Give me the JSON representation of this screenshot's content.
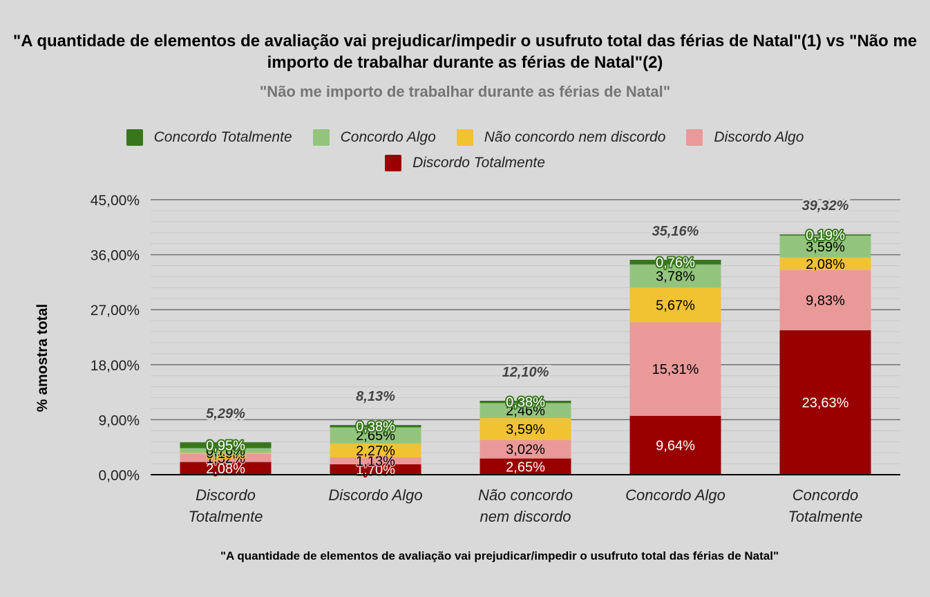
{
  "chart_data": {
    "type": "bar",
    "stacked": true,
    "title": "\"A quantidade de elementos de avaliação vai prejudicar/impedir o usufruto total das férias de Natal\"(1) vs \"Não me importo de trabalhar durante as férias de Natal\"(2)",
    "subtitle": "\"Não me importo de trabalhar durante as férias de Natal\"",
    "xlabel": "\"A quantidade de elementos de avaliação vai prejudicar/impedir o usufruto total das férias de Natal\"",
    "ylabel": "% amostra total",
    "ylim": [
      0,
      45
    ],
    "yticks": [
      0,
      9,
      18,
      27,
      36,
      45
    ],
    "ytick_labels": [
      "0,00%",
      "9,00%",
      "18,00%",
      "27,00%",
      "36,00%",
      "45,00%"
    ],
    "grid": true,
    "legend_position": "top",
    "categories": [
      "Discordo Totalmente",
      "Discordo Algo",
      "Não concordo nem discordo",
      "Concordo Algo",
      "Concordo Totalmente"
    ],
    "category_lines": [
      [
        "Discordo",
        "Totalmente"
      ],
      [
        "Discordo Algo"
      ],
      [
        "Não concordo",
        "nem discordo"
      ],
      [
        "Concordo Algo"
      ],
      [
        "Concordo",
        "Totalmente"
      ]
    ],
    "series": [
      {
        "name": "Discordo Totalmente",
        "color": "#990000",
        "label_color": "#ffffff",
        "values": [
          2.08,
          1.7,
          2.65,
          9.64,
          23.63
        ]
      },
      {
        "name": "Discordo Algo",
        "color": "#ea9999",
        "label_color": "#000000",
        "values": [
          1.32,
          1.13,
          3.02,
          15.31,
          9.83
        ]
      },
      {
        "name": "Não concordo nem discordo",
        "color": "#f1c232",
        "label_color": "#000000",
        "values": [
          0.19,
          2.27,
          3.59,
          5.67,
          2.08
        ]
      },
      {
        "name": "Concordo Algo",
        "color": "#93c47d",
        "label_color": "#000000",
        "values": [
          0.76,
          2.65,
          2.46,
          3.78,
          3.59
        ]
      },
      {
        "name": "Concordo Totalmente",
        "color": "#38761d",
        "label_color": "#ffffff",
        "values": [
          0.95,
          0.38,
          0.38,
          0.76,
          0.19
        ]
      }
    ],
    "totals": [
      5.29,
      8.13,
      12.1,
      35.16,
      39.32
    ],
    "total_labels": [
      "5,29%",
      "8,13%",
      "12,10%",
      "35,16%",
      "39,32%"
    ]
  },
  "legend": {
    "row1": [
      {
        "label": "Concordo Totalmente",
        "color": "#38761d"
      },
      {
        "label": "Concordo Algo",
        "color": "#93c47d"
      },
      {
        "label": "Não concordo nem discordo",
        "color": "#f1c232"
      },
      {
        "label": "Discordo Algo",
        "color": "#ea9999"
      }
    ],
    "row2": [
      {
        "label": "Discordo Totalmente",
        "color": "#990000"
      }
    ]
  }
}
